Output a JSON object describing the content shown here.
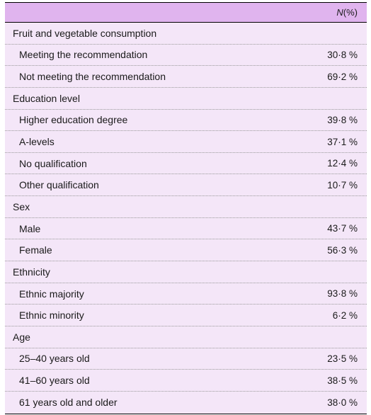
{
  "header": {
    "n_label": "N",
    "pct_label": " (%)"
  },
  "rows": [
    {
      "type": "section",
      "label": "Fruit and vegetable consumption",
      "value": ""
    },
    {
      "type": "item",
      "label": "Meeting the recommendation",
      "value": "30·8 %"
    },
    {
      "type": "item",
      "label": "Not meeting the recommendation",
      "value": "69·2 %"
    },
    {
      "type": "section",
      "label": "Education level",
      "value": ""
    },
    {
      "type": "item",
      "label": "Higher education degree",
      "value": "39·8 %"
    },
    {
      "type": "item",
      "label": "A-levels",
      "value": "37·1 %"
    },
    {
      "type": "item",
      "label": "No qualification",
      "value": "12·4 %"
    },
    {
      "type": "item",
      "label": "Other qualification",
      "value": "10·7 %"
    },
    {
      "type": "section",
      "label": "Sex",
      "value": ""
    },
    {
      "type": "item",
      "label": "Male",
      "value": "43·7 %"
    },
    {
      "type": "item",
      "label": "Female",
      "value": "56·3 %"
    },
    {
      "type": "section",
      "label": "Ethnicity",
      "value": ""
    },
    {
      "type": "item",
      "label": "Ethnic majority",
      "value": "93·8 %"
    },
    {
      "type": "item",
      "label": "Ethnic minority",
      "value": "6·2 %"
    },
    {
      "type": "section",
      "label": "Age",
      "value": ""
    },
    {
      "type": "item",
      "label": "25–40 years old",
      "value": "23·5 %"
    },
    {
      "type": "item",
      "label": "41–60 years old",
      "value": "38·5 %"
    },
    {
      "type": "item",
      "label": "61 years old and older",
      "value": "38·0 %"
    }
  ]
}
